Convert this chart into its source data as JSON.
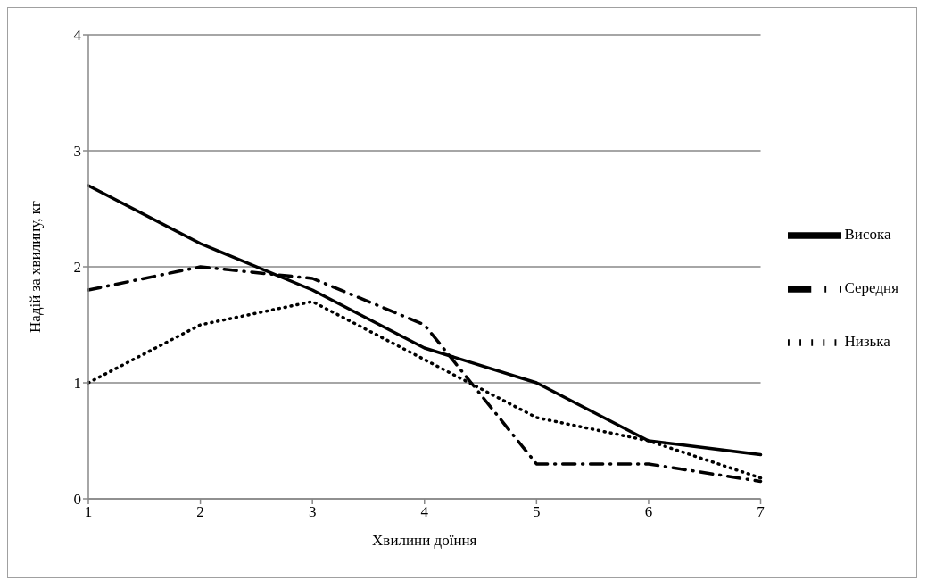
{
  "chart_data": {
    "type": "line",
    "xlabel": "Хвилини доїння",
    "ylabel": "Надій  за хвилину, кг",
    "categories": [
      "1",
      "2",
      "3",
      "4",
      "5",
      "6",
      "7"
    ],
    "series": [
      {
        "name": "Висока",
        "color": "#000000",
        "line_style": "solid",
        "values": [
          2.7,
          2.2,
          1.8,
          1.3,
          1.0,
          0.5,
          0.38
        ]
      },
      {
        "name": "Середня",
        "color": "#000000",
        "line_style": "dashdot",
        "values": [
          1.8,
          2.0,
          1.9,
          1.5,
          0.3,
          0.3,
          0.15
        ]
      },
      {
        "name": "Низька",
        "color": "#000000",
        "line_style": "dotted",
        "values": [
          1.0,
          1.5,
          1.7,
          1.2,
          0.7,
          0.5,
          0.18
        ]
      }
    ],
    "ylim": [
      0,
      4
    ],
    "yticks": [
      0,
      1,
      2,
      3,
      4
    ],
    "grid": "y",
    "legend": "right",
    "marker": "none"
  }
}
